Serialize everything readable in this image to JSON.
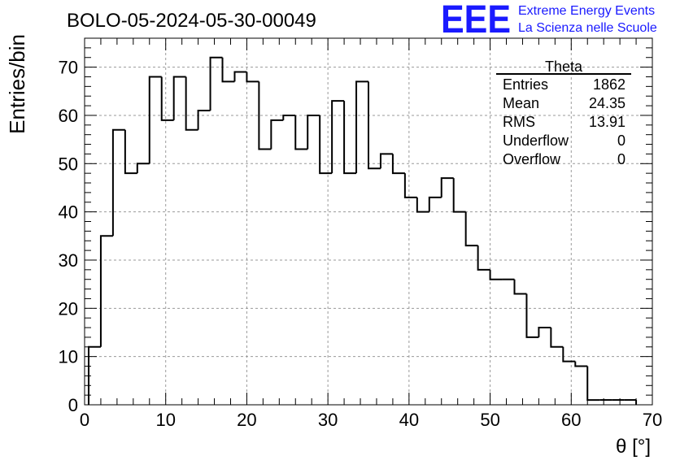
{
  "title": "BOLO-05-2024-05-30-00049",
  "logo": {
    "letters": "EEE",
    "line1": "Extreme Energy Events",
    "line2": "La Scienza nelle Scuole",
    "color": "#1a1aff"
  },
  "stats": {
    "name": "Theta",
    "rows": [
      {
        "label": "Entries",
        "value": "1862"
      },
      {
        "label": "Mean",
        "value": "24.35"
      },
      {
        "label": "RMS",
        "value": "13.91"
      },
      {
        "label": "Underflow",
        "value": "0"
      },
      {
        "label": "Overflow",
        "value": "0"
      }
    ]
  },
  "chart_data": {
    "type": "bar",
    "style": "step-histogram",
    "xlabel": "θ [°]",
    "ylabel": "Entries/bin",
    "xlim": [
      0,
      70
    ],
    "ylim": [
      0,
      76
    ],
    "grid": true,
    "bin_width": 1.5,
    "x_start": 0.5,
    "values": [
      12,
      35,
      57,
      48,
      50,
      68,
      59,
      68,
      57,
      61,
      72,
      67,
      69,
      67,
      53,
      59,
      60,
      53,
      60,
      48,
      63,
      48,
      67,
      49,
      52,
      48,
      43,
      40,
      43,
      47,
      40,
      33,
      28,
      26,
      26,
      23,
      14,
      16,
      12,
      9,
      8,
      1,
      1,
      1,
      1
    ],
    "x_ticks": [
      0,
      10,
      20,
      30,
      40,
      50,
      60,
      70
    ],
    "y_ticks": [
      0,
      10,
      20,
      30,
      40,
      50,
      60,
      70
    ]
  }
}
